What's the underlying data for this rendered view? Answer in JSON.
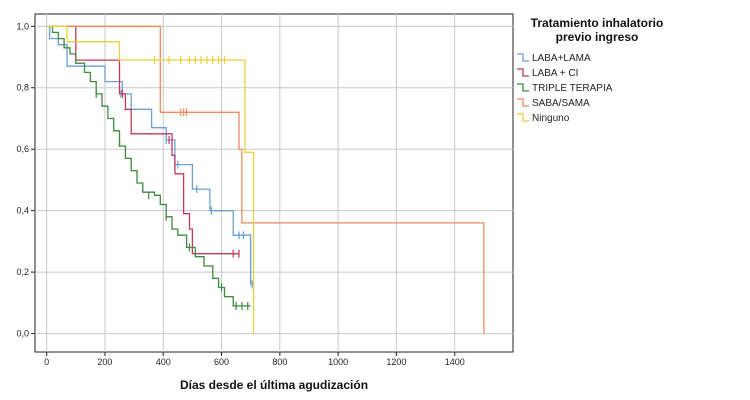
{
  "chart_data": {
    "type": "line",
    "subtype": "kaplan-meier",
    "xlabel": "Días desde el última agudización",
    "ylabel": "",
    "xlim": [
      -40,
      1600
    ],
    "ylim": [
      -0.06,
      1.04
    ],
    "x_ticks": [
      0,
      200,
      400,
      600,
      800,
      1000,
      1200,
      1400
    ],
    "x_tick_labels": [
      "0",
      "200",
      "400",
      "600",
      "800",
      "1000",
      "1200",
      "1400"
    ],
    "y_ticks": [
      0.0,
      0.2,
      0.4,
      0.6,
      0.8,
      1.0
    ],
    "y_tick_labels": [
      "0,0",
      "0,2",
      "0,4",
      "0,6",
      "0,8",
      "1,0"
    ],
    "grid": true,
    "legend": {
      "title": "Tratamiento inhalatorio previo ingreso",
      "title_lines": [
        "Tratamiento inhalatorio",
        "previo ingreso"
      ],
      "placement": "right"
    },
    "series": [
      {
        "name": "LABA+LAMA",
        "color": "#6a9fd4",
        "points": [
          [
            0,
            1.0
          ],
          [
            10,
            0.96
          ],
          [
            40,
            0.94
          ],
          [
            70,
            0.87
          ],
          [
            140,
            0.87
          ],
          [
            200,
            0.82
          ],
          [
            260,
            0.78
          ],
          [
            290,
            0.73
          ],
          [
            360,
            0.67
          ],
          [
            410,
            0.63
          ],
          [
            440,
            0.55
          ],
          [
            460,
            0.55
          ],
          [
            500,
            0.47
          ],
          [
            530,
            0.47
          ],
          [
            560,
            0.4
          ],
          [
            620,
            0.4
          ],
          [
            640,
            0.32
          ],
          [
            690,
            0.32
          ],
          [
            700,
            0.16
          ],
          [
            710,
            0.16
          ]
        ],
        "censored": [
          [
            255,
            0.78
          ],
          [
            410,
            0.63
          ],
          [
            450,
            0.55
          ],
          [
            515,
            0.47
          ],
          [
            565,
            0.4
          ],
          [
            660,
            0.32
          ],
          [
            675,
            0.32
          ],
          [
            705,
            0.16
          ]
        ]
      },
      {
        "name": "LABA + CI",
        "color": "#c0395a",
        "points": [
          [
            0,
            1.0
          ],
          [
            100,
            0.89
          ],
          [
            250,
            0.78
          ],
          [
            270,
            0.73
          ],
          [
            290,
            0.65
          ],
          [
            400,
            0.65
          ],
          [
            430,
            0.58
          ],
          [
            440,
            0.52
          ],
          [
            470,
            0.39
          ],
          [
            490,
            0.34
          ],
          [
            500,
            0.26
          ],
          [
            660,
            0.26
          ]
        ],
        "censored": [
          [
            260,
            0.78
          ],
          [
            420,
            0.63
          ],
          [
            640,
            0.26
          ],
          [
            660,
            0.26
          ]
        ]
      },
      {
        "name": "TRIPLE TERAPIA",
        "color": "#3e8a3e",
        "points": [
          [
            0,
            1.0
          ],
          [
            20,
            0.98
          ],
          [
            40,
            0.96
          ],
          [
            60,
            0.93
          ],
          [
            80,
            0.91
          ],
          [
            100,
            0.88
          ],
          [
            130,
            0.85
          ],
          [
            150,
            0.82
          ],
          [
            170,
            0.78
          ],
          [
            190,
            0.74
          ],
          [
            210,
            0.7
          ],
          [
            230,
            0.66
          ],
          [
            250,
            0.61
          ],
          [
            270,
            0.57
          ],
          [
            290,
            0.53
          ],
          [
            310,
            0.49
          ],
          [
            330,
            0.46
          ],
          [
            370,
            0.45
          ],
          [
            390,
            0.42
          ],
          [
            410,
            0.38
          ],
          [
            430,
            0.34
          ],
          [
            450,
            0.32
          ],
          [
            480,
            0.28
          ],
          [
            510,
            0.25
          ],
          [
            540,
            0.22
          ],
          [
            570,
            0.18
          ],
          [
            590,
            0.15
          ],
          [
            610,
            0.12
          ],
          [
            640,
            0.09
          ],
          [
            700,
            0.09
          ]
        ],
        "censored": [
          [
            170,
            0.78
          ],
          [
            250,
            0.62
          ],
          [
            350,
            0.45
          ],
          [
            410,
            0.38
          ],
          [
            490,
            0.28
          ],
          [
            600,
            0.15
          ],
          [
            650,
            0.09
          ],
          [
            670,
            0.09
          ],
          [
            690,
            0.09
          ]
        ]
      },
      {
        "name": "SABA/SAMA",
        "color": "#f08a5d",
        "points": [
          [
            0,
            1.0
          ],
          [
            360,
            1.0
          ],
          [
            390,
            0.72
          ],
          [
            650,
            0.72
          ],
          [
            660,
            0.6
          ],
          [
            670,
            0.36
          ],
          [
            1500,
            0.36
          ],
          [
            1500,
            0.0
          ]
        ],
        "censored": [
          [
            460,
            0.72
          ],
          [
            470,
            0.72
          ],
          [
            480,
            0.72
          ]
        ]
      },
      {
        "name": "Ninguno",
        "color": "#e8d23a",
        "points": [
          [
            0,
            1.0
          ],
          [
            70,
            0.95
          ],
          [
            240,
            0.95
          ],
          [
            250,
            0.89
          ],
          [
            670,
            0.89
          ],
          [
            680,
            0.59
          ],
          [
            710,
            0.59
          ],
          [
            710,
            0.0
          ]
        ],
        "censored": [
          [
            370,
            0.89
          ],
          [
            420,
            0.89
          ],
          [
            460,
            0.89
          ],
          [
            490,
            0.89
          ],
          [
            510,
            0.89
          ],
          [
            530,
            0.89
          ],
          [
            550,
            0.89
          ],
          [
            570,
            0.89
          ],
          [
            590,
            0.89
          ],
          [
            610,
            0.89
          ]
        ]
      }
    ]
  }
}
